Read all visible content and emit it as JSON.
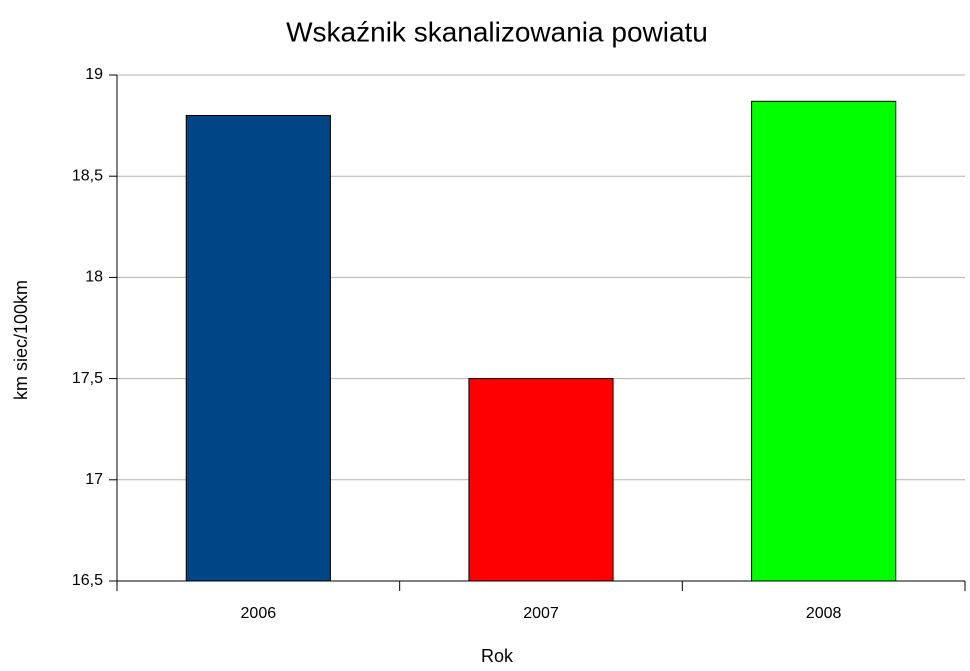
{
  "chart_data": {
    "type": "bar",
    "title": "Wskaźnik skanalizowania powiatu",
    "x_label": "Rok",
    "y_label": "km siec/100km",
    "categories": [
      "2006",
      "2007",
      "2008"
    ],
    "values": [
      18.8,
      17.5,
      18.87
    ],
    "colors": [
      "#004586",
      "#ff0000",
      "#00ff00"
    ],
    "ylim": [
      16.5,
      19
    ],
    "yticks": [
      {
        "value": 16.5,
        "label": "16,5"
      },
      17,
      {
        "value": 17.5,
        "label": "17,5"
      },
      18,
      {
        "value": 18.5,
        "label": "18,5"
      },
      19
    ],
    "grid": true
  }
}
